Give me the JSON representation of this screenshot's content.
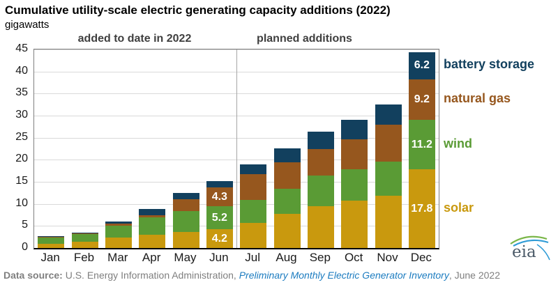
{
  "title": "Cumulative utility-scale electric generating capacity additions (2022)",
  "subtitle": "gigawatts",
  "sections": {
    "left": "added to date in 2022",
    "right": "planned additions"
  },
  "footer": {
    "prefix_bold": "Data source:",
    "text": " U.S. Energy Information Administration, ",
    "link": "Preliminary Monthly Electric Generator Inventory",
    "suffix": ", June 2022"
  },
  "logo_text": "eia",
  "colors": {
    "solar": "#C9990E",
    "wind": "#5A9B35",
    "natural_gas": "#96571E",
    "battery_storage": "#12405E",
    "section_header": "#3f3f3f",
    "gridline": "#d9d9d9",
    "axis": "#000000",
    "footer_text": "#7f7f7f",
    "link": "#1c7cc0",
    "logo_green": "#7ab648",
    "logo_blue": "#2e9bd6"
  },
  "chart_data": {
    "type": "bar",
    "stacked": true,
    "title": "Cumulative utility-scale electric generating capacity additions (2022)",
    "ylabel": "gigawatts",
    "xlabel": "",
    "ylim": [
      0,
      45
    ],
    "ytick_step": 5,
    "grid": "horizontal",
    "categories": [
      "Jan",
      "Feb",
      "Mar",
      "Apr",
      "May",
      "Jun",
      "Jul",
      "Aug",
      "Sep",
      "Oct",
      "Nov",
      "Dec"
    ],
    "series": [
      {
        "name": "solar",
        "color": "#C9990E",
        "values": [
          1.0,
          1.4,
          2.4,
          3.0,
          3.7,
          4.2,
          5.7,
          7.7,
          9.4,
          10.7,
          11.9,
          17.8
        ]
      },
      {
        "name": "wind",
        "color": "#5A9B35",
        "values": [
          1.5,
          1.7,
          2.7,
          4.0,
          4.6,
          5.2,
          5.2,
          5.8,
          7.1,
          7.2,
          7.7,
          11.2
        ]
      },
      {
        "name": "natural gas",
        "color": "#96571E",
        "values": [
          0.05,
          0.15,
          0.45,
          0.5,
          2.8,
          4.3,
          5.9,
          6.0,
          6.0,
          6.7,
          8.3,
          9.2
        ]
      },
      {
        "name": "battery storage",
        "color": "#12405E",
        "values": [
          0.1,
          0.25,
          0.5,
          1.3,
          1.3,
          1.4,
          2.1,
          3.1,
          3.9,
          4.5,
          4.6,
          6.2
        ]
      }
    ],
    "bar_labels": {
      "Jun": {
        "solar": "4.2",
        "wind": "5.2",
        "natural gas": "4.3"
      },
      "Dec": {
        "solar": "17.8",
        "wind": "11.2",
        "natural gas": "9.2",
        "battery storage": "6.2"
      }
    },
    "divider_after": "Jun",
    "legend": [
      "battery storage",
      "natural gas",
      "wind",
      "solar"
    ],
    "legend_position": "right-aligned-to-dec-segments",
    "section_labels": [
      "added to date in 2022",
      "planned additions"
    ]
  }
}
